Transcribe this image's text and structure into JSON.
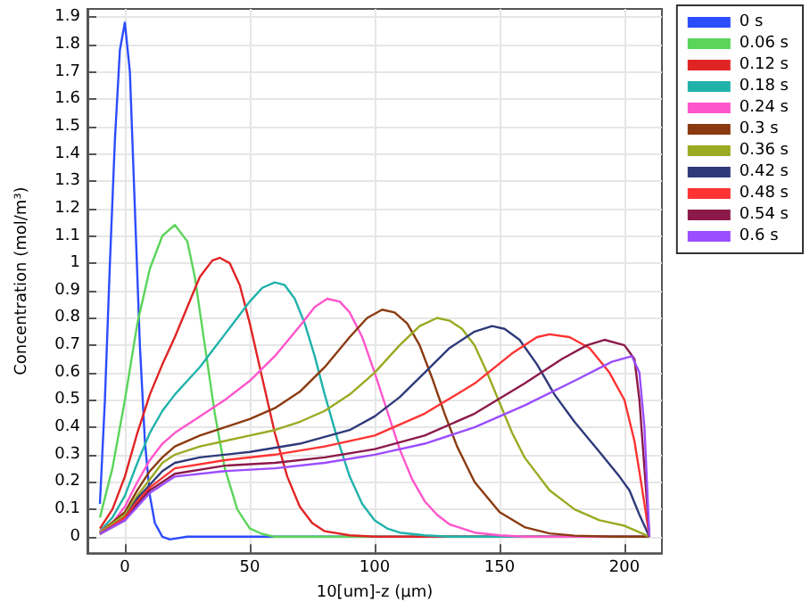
{
  "chart_data": {
    "type": "line",
    "xlabel": "10[um]-z (µm)",
    "ylabel": "Concentration (mol/m³)",
    "xlim": [
      -15,
      215
    ],
    "xticks": [
      0,
      50,
      100,
      150,
      200
    ],
    "ylim": [
      -0.06,
      1.93
    ],
    "yticks": [
      0,
      0.1,
      0.2,
      0.3,
      0.4,
      0.5,
      0.6,
      0.7,
      0.8,
      0.9,
      1,
      1.1,
      1.2,
      1.3,
      1.4,
      1.5,
      1.6,
      1.7,
      1.8,
      1.9
    ],
    "grid": true,
    "legend": "top right",
    "marker": "none",
    "line_style": "solid",
    "series": [
      {
        "name": "0 s",
        "color": "#2b4cff",
        "x": [
          -10,
          -8,
          -6,
          -4,
          -2,
          0,
          2,
          4,
          6,
          8,
          10,
          12,
          15,
          18,
          25,
          210
        ],
        "values": [
          0.12,
          0.5,
          1.0,
          1.45,
          1.78,
          1.88,
          1.7,
          1.2,
          0.7,
          0.35,
          0.15,
          0.05,
          0,
          -0.01,
          0,
          0
        ]
      },
      {
        "name": "0.06 s",
        "color": "#5ad45a",
        "x": [
          -10,
          -5,
          0,
          5,
          10,
          15,
          20,
          25,
          28,
          32,
          36,
          40,
          45,
          50,
          55,
          60,
          210
        ],
        "values": [
          0.07,
          0.25,
          0.5,
          0.78,
          0.98,
          1.1,
          1.14,
          1.08,
          0.95,
          0.7,
          0.45,
          0.25,
          0.1,
          0.03,
          0.01,
          0,
          0
        ]
      },
      {
        "name": "0.12 s",
        "color": "#e02424",
        "x": [
          -10,
          -5,
          0,
          5,
          10,
          15,
          20,
          25,
          30,
          35,
          38,
          42,
          46,
          50,
          55,
          60,
          65,
          70,
          75,
          80,
          90,
          100,
          210
        ],
        "values": [
          0.03,
          0.1,
          0.22,
          0.38,
          0.52,
          0.63,
          0.73,
          0.84,
          0.95,
          1.01,
          1.02,
          1.0,
          0.92,
          0.78,
          0.58,
          0.38,
          0.22,
          0.11,
          0.05,
          0.02,
          0.005,
          0,
          0
        ]
      },
      {
        "name": "0.18 s",
        "color": "#20b2aa",
        "x": [
          -10,
          -5,
          0,
          5,
          10,
          15,
          20,
          25,
          30,
          35,
          40,
          45,
          50,
          55,
          60,
          64,
          68,
          72,
          76,
          80,
          85,
          90,
          95,
          100,
          105,
          110,
          120,
          130,
          210
        ],
        "values": [
          0.02,
          0.07,
          0.15,
          0.27,
          0.38,
          0.46,
          0.52,
          0.57,
          0.62,
          0.68,
          0.74,
          0.8,
          0.86,
          0.91,
          0.93,
          0.92,
          0.87,
          0.78,
          0.66,
          0.52,
          0.36,
          0.22,
          0.12,
          0.06,
          0.03,
          0.015,
          0.005,
          0,
          0
        ]
      },
      {
        "name": "0.24 s",
        "color": "#ff55cc",
        "x": [
          -10,
          -5,
          0,
          5,
          10,
          15,
          20,
          30,
          40,
          50,
          60,
          70,
          76,
          81,
          86,
          90,
          95,
          100,
          105,
          110,
          115,
          120,
          125,
          130,
          140,
          150,
          160,
          210
        ],
        "values": [
          0.02,
          0.05,
          0.11,
          0.2,
          0.28,
          0.34,
          0.38,
          0.44,
          0.5,
          0.57,
          0.66,
          0.77,
          0.84,
          0.87,
          0.86,
          0.82,
          0.73,
          0.6,
          0.46,
          0.32,
          0.21,
          0.13,
          0.08,
          0.045,
          0.015,
          0.005,
          0,
          0
        ]
      },
      {
        "name": "0.3 s",
        "color": "#8b3a0f",
        "x": [
          -10,
          0,
          5,
          10,
          15,
          20,
          30,
          40,
          50,
          60,
          70,
          80,
          90,
          97,
          103,
          108,
          113,
          118,
          123,
          128,
          133,
          140,
          150,
          160,
          170,
          180,
          195,
          210
        ],
        "values": [
          0.015,
          0.09,
          0.17,
          0.24,
          0.29,
          0.33,
          0.37,
          0.4,
          0.43,
          0.47,
          0.53,
          0.62,
          0.73,
          0.8,
          0.83,
          0.82,
          0.78,
          0.7,
          0.58,
          0.45,
          0.33,
          0.2,
          0.09,
          0.035,
          0.012,
          0.004,
          0,
          0
        ]
      },
      {
        "name": "0.36 s",
        "color": "#9aaa22",
        "x": [
          -10,
          0,
          5,
          10,
          15,
          20,
          30,
          40,
          50,
          60,
          70,
          80,
          90,
          100,
          110,
          118,
          125,
          130,
          135,
          140,
          145,
          150,
          155,
          160,
          170,
          180,
          190,
          200,
          205,
          210
        ],
        "values": [
          0.015,
          0.08,
          0.15,
          0.21,
          0.27,
          0.3,
          0.33,
          0.35,
          0.37,
          0.39,
          0.42,
          0.46,
          0.52,
          0.6,
          0.7,
          0.77,
          0.8,
          0.79,
          0.76,
          0.7,
          0.6,
          0.49,
          0.38,
          0.29,
          0.17,
          0.1,
          0.06,
          0.04,
          0.02,
          0
        ]
      },
      {
        "name": "0.42 s",
        "color": "#2e3a7a",
        "x": [
          -10,
          0,
          5,
          10,
          15,
          20,
          30,
          50,
          70,
          90,
          100,
          110,
          120,
          130,
          140,
          147,
          152,
          158,
          165,
          172,
          180,
          190,
          198,
          202,
          206,
          210
        ],
        "values": [
          0.01,
          0.07,
          0.14,
          0.19,
          0.24,
          0.27,
          0.29,
          0.31,
          0.34,
          0.39,
          0.44,
          0.51,
          0.6,
          0.69,
          0.75,
          0.77,
          0.76,
          0.72,
          0.63,
          0.52,
          0.42,
          0.31,
          0.22,
          0.17,
          0.08,
          0
        ]
      },
      {
        "name": "0.48 s",
        "color": "#ff3333",
        "x": [
          -10,
          0,
          5,
          10,
          20,
          40,
          60,
          80,
          100,
          120,
          140,
          155,
          165,
          170,
          178,
          186,
          194,
          200,
          204,
          207,
          210
        ],
        "values": [
          0.01,
          0.07,
          0.13,
          0.18,
          0.25,
          0.28,
          0.3,
          0.33,
          0.37,
          0.45,
          0.56,
          0.67,
          0.73,
          0.74,
          0.73,
          0.69,
          0.6,
          0.5,
          0.35,
          0.18,
          0
        ]
      },
      {
        "name": "0.54 s",
        "color": "#8b1a4a",
        "x": [
          -10,
          0,
          5,
          10,
          20,
          40,
          60,
          80,
          100,
          120,
          140,
          160,
          175,
          185,
          192,
          200,
          204,
          206,
          208,
          210
        ],
        "values": [
          0.01,
          0.06,
          0.12,
          0.17,
          0.23,
          0.26,
          0.27,
          0.29,
          0.32,
          0.37,
          0.45,
          0.56,
          0.65,
          0.7,
          0.72,
          0.7,
          0.65,
          0.5,
          0.25,
          0
        ]
      },
      {
        "name": "0.6 s",
        "color": "#9b4dff",
        "x": [
          -10,
          0,
          5,
          10,
          20,
          40,
          60,
          80,
          100,
          120,
          140,
          160,
          180,
          195,
          203,
          206,
          208,
          209,
          210
        ],
        "values": [
          0.01,
          0.06,
          0.11,
          0.16,
          0.22,
          0.24,
          0.25,
          0.27,
          0.3,
          0.34,
          0.4,
          0.48,
          0.57,
          0.64,
          0.66,
          0.6,
          0.4,
          0.2,
          0
        ]
      }
    ]
  }
}
